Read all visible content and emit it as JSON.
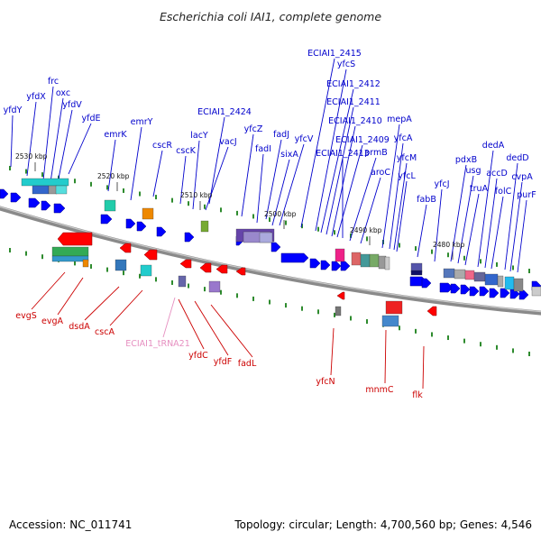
{
  "title": "Escherichia coli IAI1, complete genome",
  "footer": {
    "accession": "Accession: NC_011741",
    "topology": "Topology: circular; Length: 4,700,560 bp; Genes: 4,546"
  },
  "colors": {
    "forward_label": "#0000cc",
    "reverse_label": "#cc0000",
    "trna_label": "#e68fc0",
    "backbone": "#8a8a8a",
    "forward_gene": "#0000ff",
    "reverse_gene": "#ff0000",
    "tick_green": "#2e8b2e"
  },
  "ticks": [
    "2530 kbp",
    "2520 kbp",
    "2510 kbp",
    "2500 kbp",
    "2490 kbp",
    "2480 kbp"
  ],
  "forward_labels": [
    "yfdY",
    "yfdX",
    "frc",
    "oxc",
    "yfdV",
    "yfdE",
    "emrK",
    "emrY",
    "cscR",
    "cscK",
    "lacY",
    "vacJ",
    "ECIAI1_2424",
    "yfcZ",
    "fadI",
    "fadJ",
    "sixA",
    "yfcV",
    "ECIAI1_2415",
    "yfcS",
    "ECIAI1_2412",
    "ECIAI1_2411",
    "ECIAI1_2410",
    "ECIAI1_2409",
    "ECIAI1_2413",
    "prmB",
    "aroC",
    "mepA",
    "yfcA",
    "yfcM",
    "yfcL",
    "fabB",
    "yfcJ",
    "pdxB",
    "usg",
    "truA",
    "dedA",
    "accD",
    "folC",
    "dedD",
    "cvpA",
    "purF"
  ],
  "reverse_labels": [
    "evgS",
    "evgA",
    "dsdA",
    "cscA",
    "ECIAI1_tRNA21",
    "yfdC",
    "yfdF",
    "fadL",
    "yfcN",
    "mnmC",
    "flk"
  ]
}
